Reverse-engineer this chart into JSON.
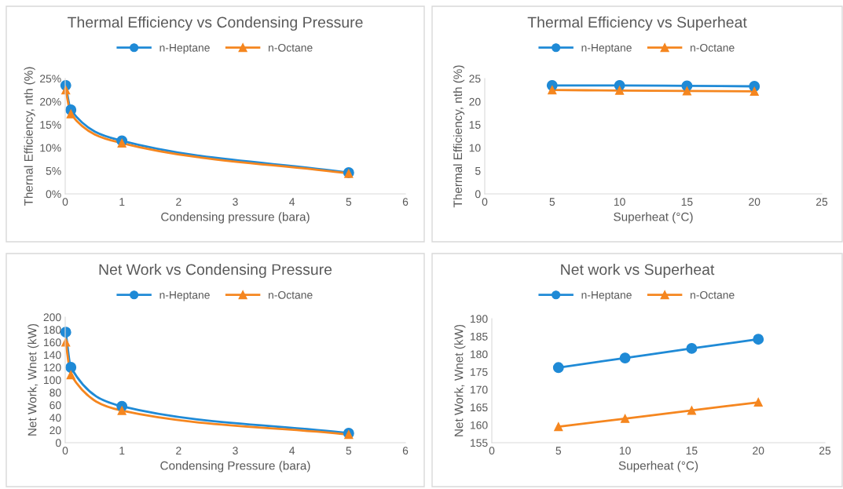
{
  "chart_data": [
    {
      "type": "line",
      "title": "Thermal Efficiency vs Condensing Pressure",
      "xlabel": "Condensing pressure (bara)",
      "ylabel": "Thernal Efficiency, nth (%)",
      "x": [
        0.01,
        0.1,
        1,
        5
      ],
      "series": [
        {
          "name": "n-Heptane",
          "color": "#1f8ad6",
          "marker": "circle",
          "values": [
            23.5,
            18.2,
            11.5,
            4.6
          ]
        },
        {
          "name": "n-Octane",
          "color": "#f5861f",
          "marker": "triangle",
          "values": [
            22.5,
            17.3,
            11.0,
            4.4
          ]
        }
      ],
      "xlim": [
        0,
        6
      ],
      "xticks": [
        0,
        1,
        2,
        3,
        4,
        5,
        6
      ],
      "ylim": [
        0,
        25
      ],
      "yticks": [
        {
          "value": 0,
          "label": "0%"
        },
        {
          "value": 5,
          "label": "5%"
        },
        {
          "value": 10,
          "label": "10%"
        },
        {
          "value": 15,
          "label": "15%"
        },
        {
          "value": 20,
          "label": "20%"
        },
        {
          "value": 25,
          "label": "25%"
        }
      ],
      "grid": false,
      "legend": "top"
    },
    {
      "type": "line",
      "title": "Thermal Efficiency vs Superheat",
      "xlabel": "Superheat (°C)",
      "ylabel": "Thermal Efficiency, nth (%)",
      "x": [
        5,
        10,
        15,
        20
      ],
      "series": [
        {
          "name": "n-Heptane",
          "color": "#1f8ad6",
          "marker": "circle",
          "values": [
            23.5,
            23.5,
            23.4,
            23.3
          ]
        },
        {
          "name": "n-Octane",
          "color": "#f5861f",
          "marker": "triangle",
          "values": [
            22.5,
            22.4,
            22.3,
            22.2
          ]
        }
      ],
      "xlim": [
        0,
        25
      ],
      "xticks": [
        0,
        5,
        10,
        15,
        20,
        25
      ],
      "ylim": [
        0,
        25
      ],
      "yticks": [
        0,
        5,
        10,
        15,
        20,
        25
      ],
      "grid": false,
      "legend": "top"
    },
    {
      "type": "line",
      "title": "Net Work vs Condensing Pressure",
      "xlabel": "Condensing Pressure (bara)",
      "ylabel": "Net Work, Wnet (kW)",
      "x": [
        0.01,
        0.1,
        1,
        5
      ],
      "series": [
        {
          "name": "n-Heptane",
          "color": "#1f8ad6",
          "marker": "circle",
          "values": [
            176,
            120,
            58,
            15
          ]
        },
        {
          "name": "n-Octane",
          "color": "#f5861f",
          "marker": "triangle",
          "values": [
            160,
            108,
            51,
            13
          ]
        }
      ],
      "xlim": [
        0,
        6
      ],
      "xticks": [
        0,
        1,
        2,
        3,
        4,
        5,
        6
      ],
      "ylim": [
        0,
        200
      ],
      "yticks": [
        0,
        20,
        40,
        60,
        80,
        100,
        120,
        140,
        160,
        180,
        200
      ],
      "grid": false,
      "legend": "top"
    },
    {
      "type": "line",
      "title": "Net work vs Superheat",
      "xlabel": "Superheat (°C)",
      "ylabel": "Net Work, Wnet (kW)",
      "x": [
        5,
        10,
        15,
        20
      ],
      "series": [
        {
          "name": "n-Heptane",
          "color": "#1f8ad6",
          "marker": "circle",
          "values": [
            176.2,
            178.9,
            181.6,
            184.2
          ]
        },
        {
          "name": "n-Octane",
          "color": "#f5861f",
          "marker": "triangle",
          "values": [
            159.5,
            161.8,
            164.1,
            166.4
          ]
        }
      ],
      "xlim": [
        0,
        25
      ],
      "xticks": [
        0,
        5,
        10,
        15,
        20,
        25
      ],
      "ylim": [
        155,
        190
      ],
      "yticks": [
        155,
        160,
        165,
        170,
        175,
        180,
        185,
        190
      ],
      "grid": false,
      "legend": "top"
    }
  ]
}
